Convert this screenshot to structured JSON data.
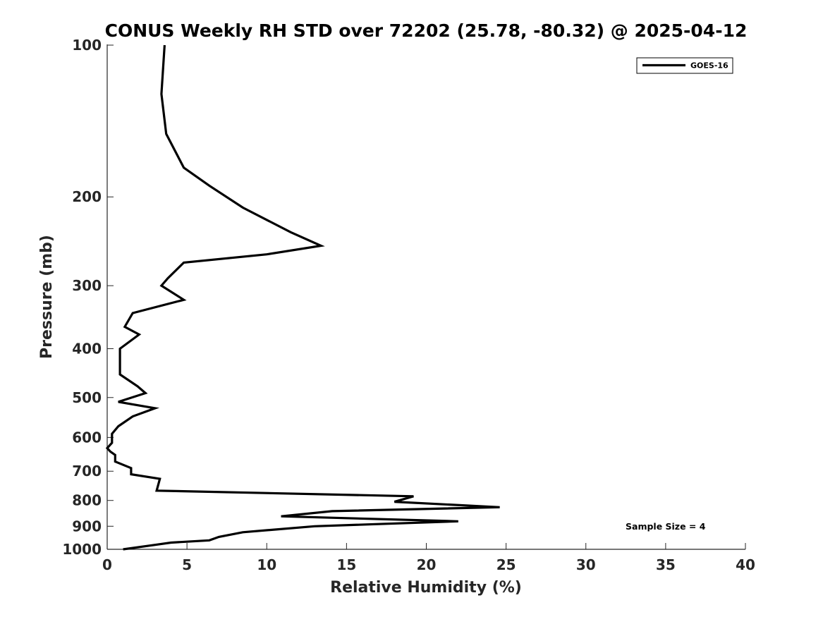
{
  "chart_data": {
    "type": "line",
    "title": "CONUS Weekly RH STD over 72202 (25.78, -80.32) @ 2025-04-12",
    "xlabel": "Relative Humidity (%)",
    "ylabel": "Pressure (mb)",
    "xlim": [
      0,
      40
    ],
    "ylim": [
      100,
      1000
    ],
    "y_scale": "log",
    "y_reversed": true,
    "x_ticks": [
      0,
      5,
      10,
      15,
      20,
      25,
      30,
      35,
      40
    ],
    "y_ticks": [
      100,
      200,
      300,
      400,
      500,
      600,
      700,
      800,
      900,
      1000
    ],
    "grid": false,
    "legend_position": "top-right",
    "series": [
      {
        "name": "GOES-16",
        "color": "#000000",
        "points": [
          [
            3.6,
            100
          ],
          [
            3.4,
            125
          ],
          [
            3.7,
            150
          ],
          [
            4.8,
            175
          ],
          [
            6.4,
            190
          ],
          [
            8.5,
            210
          ],
          [
            11.5,
            235
          ],
          [
            13.4,
            250
          ],
          [
            10.0,
            260
          ],
          [
            4.8,
            270
          ],
          [
            3.8,
            290
          ],
          [
            3.4,
            300
          ],
          [
            4.8,
            320
          ],
          [
            1.6,
            340
          ],
          [
            1.1,
            362
          ],
          [
            2.0,
            375
          ],
          [
            0.8,
            400
          ],
          [
            0.8,
            420
          ],
          [
            0.8,
            450
          ],
          [
            1.9,
            475
          ],
          [
            2.4,
            490
          ],
          [
            0.7,
            510
          ],
          [
            3.0,
            525
          ],
          [
            1.6,
            545
          ],
          [
            0.7,
            570
          ],
          [
            0.3,
            590
          ],
          [
            0.3,
            600
          ],
          [
            0.3,
            615
          ],
          [
            0.0,
            630
          ],
          [
            0.2,
            640
          ],
          [
            0.5,
            650
          ],
          [
            0.5,
            670
          ],
          [
            1.5,
            690
          ],
          [
            1.5,
            710
          ],
          [
            3.3,
            725
          ],
          [
            3.1,
            765
          ],
          [
            19.2,
            785
          ],
          [
            18.0,
            805
          ],
          [
            24.6,
            825
          ],
          [
            14.1,
            840
          ],
          [
            10.9,
            860
          ],
          [
            22.0,
            880
          ],
          [
            13.0,
            900
          ],
          [
            8.5,
            925
          ],
          [
            7.0,
            945
          ],
          [
            6.4,
            960
          ],
          [
            4.0,
            970
          ],
          [
            3.0,
            980
          ],
          [
            1.0,
            1000
          ]
        ]
      }
    ],
    "annotation": "Sample Size = 4"
  }
}
